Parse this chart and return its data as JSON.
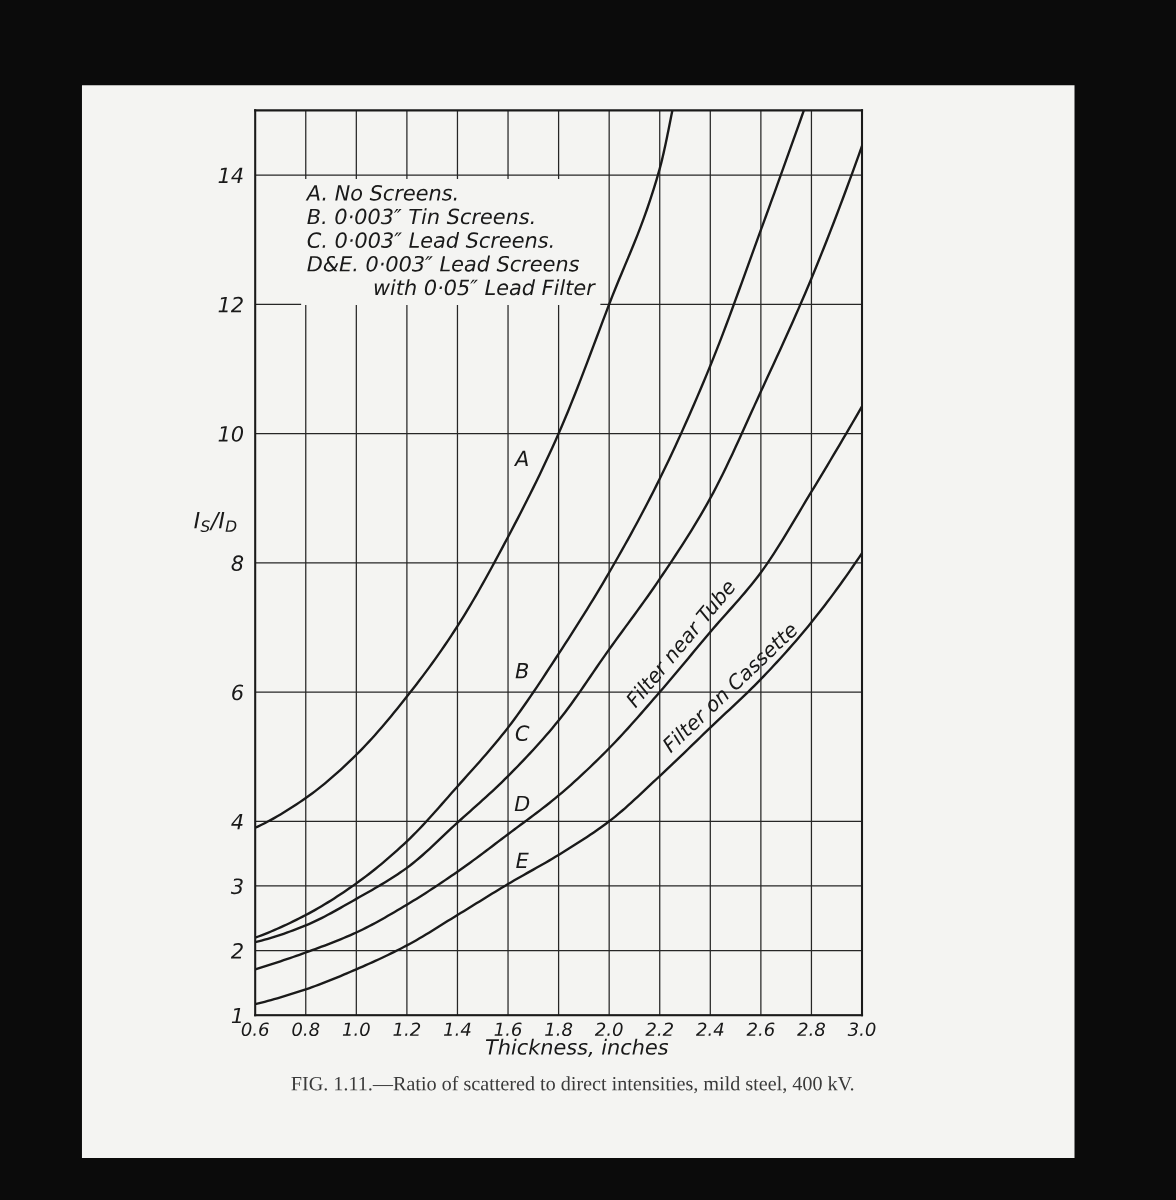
{
  "chart_data": {
    "type": "line",
    "title": "FIG. 1.11.—Ratio of scattered to direct intensities, mild steel, 400 kV.",
    "xlabel": "Thickness, inches",
    "ylabel": "I$_{S}$/I$_{D}$",
    "annotations": [
      "A. No Screens.",
      "B. 0·003″ Tin Screens.",
      "C. 0·003″ Lead Screens.",
      "D&E. 0·003″ Lead Screens\nwith 0·05″ Lead Filter",
      {
        "text": "Filter near Tube",
        "x": 2.33,
        "y": 6.6
      },
      {
        "text": "Filter on Cassette",
        "x": 2.52,
        "y": 5.9
      }
    ],
    "series": [
      {
        "name": "A",
        "color": "#1a1a1a",
        "x": [
          0.6,
          0.8,
          1.0,
          1.2,
          1.4,
          1.6,
          1.8,
          2.0,
          2.2,
          2.25
        ],
        "values": [
          3.9,
          4.36,
          5.03,
          5.93,
          7.02,
          8.4,
          10.0,
          12.0,
          14.1,
          15.0
        ]
      },
      {
        "name": "B",
        "color": "#1a1a1a",
        "x": [
          0.6,
          0.8,
          1.0,
          1.2,
          1.4,
          1.6,
          1.8,
          2.0,
          2.2,
          2.4,
          2.6,
          2.77
        ],
        "values": [
          2.2,
          2.55,
          3.04,
          3.69,
          4.54,
          5.45,
          6.59,
          7.85,
          9.3,
          11.05,
          13.15,
          15.0
        ]
      },
      {
        "name": "C",
        "color": "#1a1a1a",
        "x": [
          0.6,
          0.8,
          1.0,
          1.2,
          1.4,
          1.6,
          1.8,
          2.0,
          2.2,
          2.4,
          2.6,
          2.8,
          3.0
        ],
        "values": [
          2.13,
          2.39,
          2.8,
          3.28,
          3.98,
          4.7,
          5.56,
          6.66,
          7.75,
          9.0,
          10.65,
          12.4,
          14.45
        ]
      },
      {
        "name": "D",
        "color": "#1a1a1a",
        "x": [
          0.6,
          0.8,
          1.0,
          1.2,
          1.4,
          1.6,
          1.8,
          2.0,
          2.2,
          2.4,
          2.6,
          2.8,
          3.0
        ],
        "values": [
          1.71,
          1.97,
          2.28,
          2.71,
          3.22,
          3.8,
          4.4,
          5.13,
          6.0,
          6.93,
          7.85,
          9.1,
          10.42
        ]
      },
      {
        "name": "E",
        "color": "#1a1a1a",
        "x": [
          0.6,
          0.8,
          1.0,
          1.2,
          1.4,
          1.6,
          1.8,
          2.0,
          2.2,
          2.4,
          2.6,
          2.8,
          3.0
        ],
        "values": [
          1.17,
          1.4,
          1.71,
          2.08,
          2.55,
          3.03,
          3.48,
          4.0,
          4.7,
          5.45,
          6.2,
          7.08,
          8.15
        ]
      }
    ],
    "xlim": [
      0.6,
      3.0
    ],
    "ylim": [
      1,
      15
    ],
    "xticks": [
      0.6,
      0.8,
      {
        "value": 1,
        "label": "1.0"
      },
      1.2,
      1.4,
      1.6,
      1.8,
      {
        "value": 2,
        "label": "2.0"
      },
      2.2,
      2.4,
      2.6,
      2.8,
      {
        "value": 3,
        "label": "3.0"
      }
    ],
    "yticks": [
      1,
      2,
      3,
      4,
      6,
      8,
      10,
      12,
      14
    ],
    "grid": true
  }
}
